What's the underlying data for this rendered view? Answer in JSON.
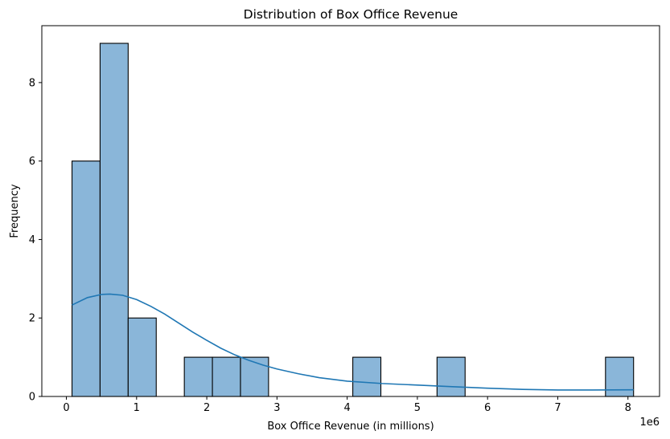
{
  "chart_data": {
    "type": "bar",
    "subtype": "histogram-with-kde",
    "title": "Distribution of Box Office Revenue",
    "xlabel": "Box Office Revenue (in millions)",
    "ylabel": "Frequency",
    "x_offset_label": "1e6",
    "xlim": [
      -350000,
      8450000
    ],
    "ylim": [
      0,
      9.45
    ],
    "xticks": [
      0,
      1,
      2,
      3,
      4,
      5,
      6,
      7,
      8
    ],
    "yticks": [
      0,
      2,
      4,
      6,
      8
    ],
    "grid": false,
    "legend": "none",
    "bins": [
      {
        "x0": 80000,
        "x1": 480000,
        "count": 6
      },
      {
        "x0": 480000,
        "x1": 880000,
        "count": 9
      },
      {
        "x0": 880000,
        "x1": 1280000,
        "count": 2
      },
      {
        "x0": 1280000,
        "x1": 1680000,
        "count": 0
      },
      {
        "x0": 1680000,
        "x1": 2080000,
        "count": 1
      },
      {
        "x0": 2080000,
        "x1": 2480000,
        "count": 1
      },
      {
        "x0": 2480000,
        "x1": 2880000,
        "count": 1
      },
      {
        "x0": 2880000,
        "x1": 3280000,
        "count": 0
      },
      {
        "x0": 3280000,
        "x1": 3680000,
        "count": 0
      },
      {
        "x0": 3680000,
        "x1": 4080000,
        "count": 0
      },
      {
        "x0": 4080000,
        "x1": 4480000,
        "count": 1
      },
      {
        "x0": 4480000,
        "x1": 4880000,
        "count": 0
      },
      {
        "x0": 4880000,
        "x1": 5280000,
        "count": 0
      },
      {
        "x0": 5280000,
        "x1": 5680000,
        "count": 1
      },
      {
        "x0": 5680000,
        "x1": 6080000,
        "count": 0
      },
      {
        "x0": 6080000,
        "x1": 6480000,
        "count": 0
      },
      {
        "x0": 6480000,
        "x1": 6880000,
        "count": 0
      },
      {
        "x0": 6880000,
        "x1": 7280000,
        "count": 0
      },
      {
        "x0": 7280000,
        "x1": 7680000,
        "count": 0
      },
      {
        "x0": 7680000,
        "x1": 8080000,
        "count": 1
      }
    ],
    "kde_curve": {
      "x": [
        80000,
        300000,
        500000,
        620000,
        800000,
        1000000,
        1200000,
        1400000,
        1600000,
        1800000,
        2000000,
        2200000,
        2400000,
        2600000,
        2800000,
        3000000,
        3300000,
        3600000,
        4000000,
        4500000,
        5000000,
        5500000,
        6000000,
        6500000,
        7000000,
        7500000,
        8080000
      ],
      "y": [
        2.33,
        2.52,
        2.6,
        2.61,
        2.58,
        2.47,
        2.3,
        2.1,
        1.87,
        1.64,
        1.43,
        1.23,
        1.06,
        0.92,
        0.8,
        0.7,
        0.58,
        0.48,
        0.39,
        0.33,
        0.29,
        0.25,
        0.21,
        0.18,
        0.165,
        0.165,
        0.17
      ]
    },
    "colors": {
      "bar_fill": "#8ab6d9",
      "bar_edge": "#000000",
      "kde_line": "#1f77b4",
      "axes": "#000000"
    }
  }
}
